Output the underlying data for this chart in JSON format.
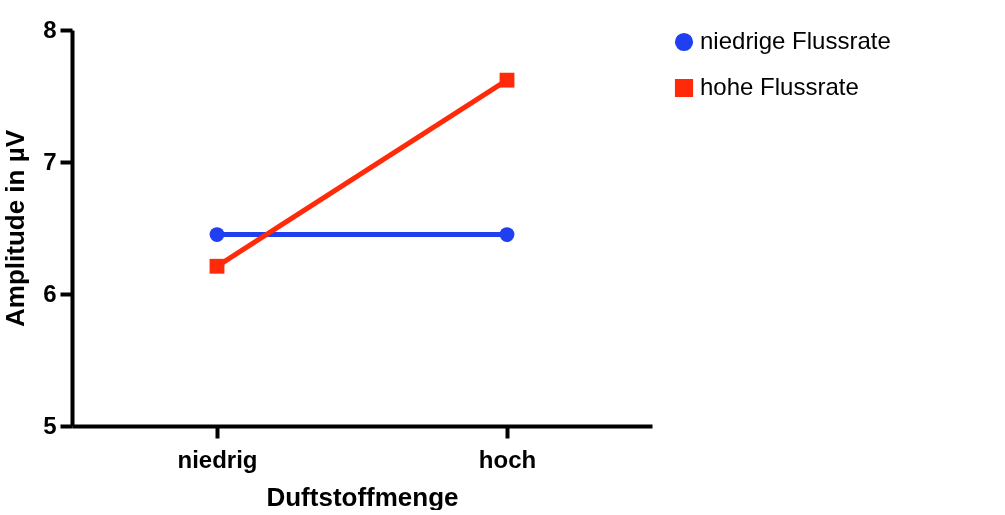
{
  "chart_data": {
    "type": "line",
    "xlabel": "Duftstoffmenge",
    "ylabel": "Amplitude in µV",
    "categories": [
      "niedrig",
      "hoch"
    ],
    "series": [
      {
        "name": "niedrige Flussrate",
        "color": "#1f3ff0",
        "marker": "circle",
        "values": [
          6.45,
          6.45
        ]
      },
      {
        "name": "hohe Flussrate",
        "color": "#ff2a0a",
        "marker": "square",
        "values": [
          6.21,
          7.62
        ]
      }
    ],
    "ylim": [
      5,
      8
    ],
    "yticks": [
      5,
      6,
      7,
      8
    ],
    "grid": false,
    "legend": "top right"
  }
}
